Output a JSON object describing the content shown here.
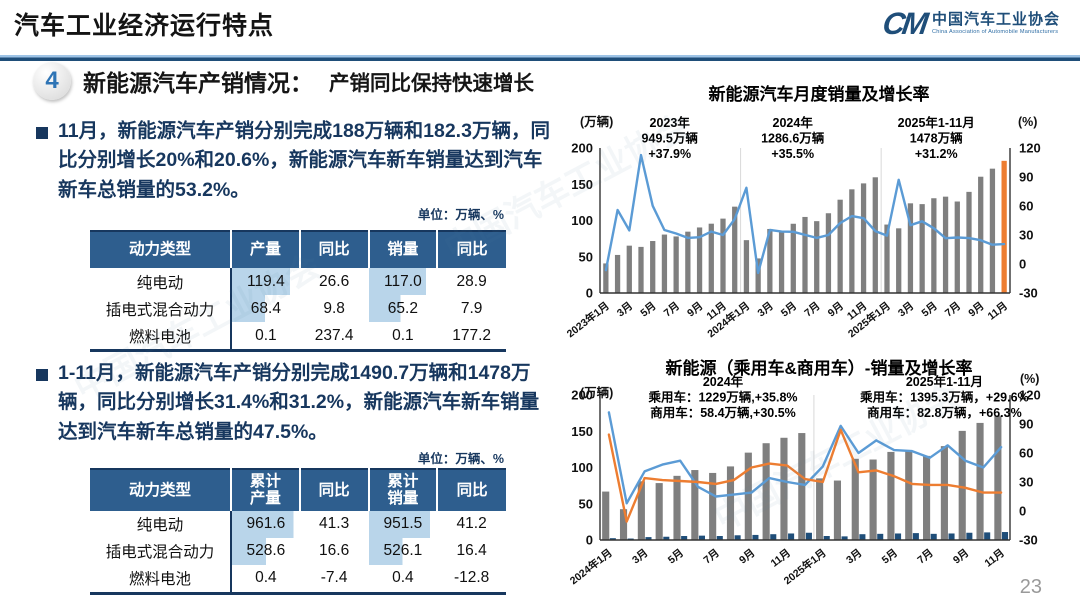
{
  "header": {
    "title": "汽车工业经济运行特点",
    "logo": {
      "mark": "CM",
      "name_cn": "中国汽车工业协会",
      "name_en": "China Association of Automobile Manufacturers"
    }
  },
  "section": {
    "badge": "4",
    "title": "新能源汽车产销情况：",
    "subtitle": "产销同比保持快速增长"
  },
  "watermark": "中国汽车工业协会",
  "page_number": "23",
  "left": {
    "bullet1": "11月，新能源汽车产销分别完成188万辆和182.3万辆，同比分别增长20%和20.6%，新能源汽车新车销量达到汽车新车总销量的53.2%。",
    "unit_note1": "单位：万辆、%",
    "table1": {
      "headers": [
        "动力类型",
        "产量",
        "同比",
        "销量",
        "同比"
      ],
      "rows": [
        [
          "纯电动",
          "119.4",
          "26.6",
          "117.0",
          "28.9"
        ],
        [
          "插电式混合动力",
          "68.4",
          "9.8",
          "65.2",
          "7.9"
        ],
        [
          "燃料电池",
          "0.1",
          "237.4",
          "0.1",
          "177.2"
        ]
      ],
      "bar_cols": [
        1,
        3
      ],
      "bar_max": 140
    },
    "bullet2": "1-11月，新能源汽车产销分别完成1490.7万辆和1478万辆，同比分别增长31.4%和31.2%，新能源汽车新车销量达到汽车新车总销量的47.5%。",
    "unit_note2": "单位：万辆、%",
    "table2": {
      "headers": [
        "动力类型",
        "累计\n产量",
        "同比",
        "累计\n销量",
        "同比"
      ],
      "rows": [
        [
          "纯电动",
          "961.6",
          "41.3",
          "951.5",
          "41.2"
        ],
        [
          "插电式混合动力",
          "528.6",
          "16.6",
          "526.1",
          "16.4"
        ],
        [
          "燃料电池",
          "0.4",
          "-7.4",
          "0.4",
          "-12.8"
        ]
      ],
      "bar_cols": [
        1,
        3
      ],
      "bar_max": 1060
    }
  },
  "chart_data": [
    {
      "type": "bar",
      "title": "新能源汽车月度销量及增长率",
      "unit_left": "(万辆)",
      "unit_right": "(%)",
      "ylim_left": [
        0,
        200
      ],
      "ylim_right": [
        -30,
        120
      ],
      "left_ticks": [
        0,
        50,
        100,
        150,
        200
      ],
      "right_ticks": [
        -30,
        0,
        30,
        60,
        90,
        120
      ],
      "grid": false,
      "legend": "none",
      "tick_every": 2,
      "tick_labels": [
        "2023年1月",
        "3月",
        "5月",
        "7月",
        "9月",
        "11月",
        "2024年1月",
        "3月",
        "5月",
        "7月",
        "9月",
        "11月",
        "2025年1月",
        "3月",
        "5月",
        "7月",
        "9月",
        "11月"
      ],
      "categories": [
        "2023年1月",
        "2023年2月",
        "2023年3月",
        "2023年4月",
        "2023年5月",
        "2023年6月",
        "2023年7月",
        "2023年8月",
        "2023年9月",
        "2023年10月",
        "2023年11月",
        "2023年12月",
        "2024年1月",
        "2024年2月",
        "2024年3月",
        "2024年4月",
        "2024年5月",
        "2024年6月",
        "2024年7月",
        "2024年8月",
        "2024年9月",
        "2024年10月",
        "2024年11月",
        "2024年12月",
        "2025年1月",
        "2025年2月",
        "2025年3月",
        "2025年4月",
        "2025年5月",
        "2025年6月",
        "2025年7月",
        "2025年8月",
        "2025年9月",
        "2025年10月",
        "2025年11月"
      ],
      "separators": [
        12,
        24
      ],
      "series": [
        {
          "name": "月度销量",
          "type": "bar",
          "axis": "left",
          "color": "#7F7F7F",
          "last_color": "#ED7D31",
          "values": [
            40.8,
            52.5,
            65.3,
            63.6,
            71.7,
            80.6,
            78.0,
            84.6,
            90.4,
            95.6,
            102.6,
            119.1,
            72.9,
            47.7,
            88.3,
            85.0,
            95.5,
            104.9,
            99.1,
            110.0,
            128.7,
            143.0,
            151.2,
            159.6,
            94.4,
            89.2,
            123.7,
            122.6,
            130.7,
            132.9,
            126.2,
            139.5,
            160.4,
            171.5,
            182.3
          ]
        },
        {
          "name": "增长率",
          "type": "line",
          "axis": "right",
          "color": "#5B9BD5",
          "values": [
            -6.3,
            55.9,
            34.8,
            112.7,
            60.2,
            35.2,
            31.6,
            27.0,
            27.7,
            33.5,
            30.0,
            46.4,
            78.8,
            -9.2,
            35.3,
            33.5,
            33.3,
            30.1,
            27.0,
            30.0,
            42.3,
            49.6,
            47.4,
            34.0,
            29.4,
            87.1,
            40.1,
            44.2,
            36.9,
            26.7,
            27.4,
            26.8,
            24.6,
            20.0,
            20.6
          ]
        }
      ],
      "annotations": [
        {
          "x_frac": 0.17,
          "lines": [
            "2023年",
            "949.5万辆",
            "+37.9%"
          ]
        },
        {
          "x_frac": 0.47,
          "lines": [
            "2024年",
            "1286.6万辆",
            "+35.5%"
          ]
        },
        {
          "x_frac": 0.82,
          "lines": [
            "2025年1-11月",
            "1478万辆",
            "+31.2%"
          ]
        }
      ]
    },
    {
      "type": "bar",
      "title": "新能源（乘用车&商用车）-销量及增长率",
      "unit_left": "(万辆)",
      "unit_right": "(%)",
      "ylim_left": [
        0,
        200
      ],
      "ylim_right": [
        -30,
        120
      ],
      "left_ticks": [
        0,
        50,
        100,
        150,
        200
      ],
      "right_ticks": [
        -30,
        0,
        30,
        60,
        90,
        120
      ],
      "grid": false,
      "legend": "none",
      "tick_every": 2,
      "tick_labels": [
        "2024年1月",
        "3月",
        "5月",
        "7月",
        "9月",
        "11月",
        "2025年1月",
        "3月",
        "5月",
        "7月",
        "9月",
        "11月"
      ],
      "categories": [
        "2024年1月",
        "2024年2月",
        "2024年3月",
        "2024年4月",
        "2024年5月",
        "2024年6月",
        "2024年7月",
        "2024年8月",
        "2024年9月",
        "2024年10月",
        "2024年11月",
        "2024年12月",
        "2025年1月",
        "2025年2月",
        "2025年3月",
        "2025年4月",
        "2025年5月",
        "2025年6月",
        "2025年7月",
        "2025年8月",
        "2025年9月",
        "2025年10月",
        "2025年11月"
      ],
      "separators": [
        12
      ],
      "series": [
        {
          "name": "乘用车销量",
          "type": "bar",
          "axis": "left",
          "color": "#7F7F7F",
          "values": [
            66.8,
            42.5,
            81.0,
            78.5,
            88.5,
            96.5,
            92.5,
            101.5,
            120.5,
            133.5,
            141.0,
            147.5,
            85.0,
            82.0,
            112.0,
            111.0,
            121.5,
            122.5,
            116.0,
            129.5,
            150.5,
            161.5,
            171.5
          ]
        },
        {
          "name": "商用车销量",
          "type": "bar",
          "axis": "left",
          "color": "#1F4E79",
          "values": [
            2.5,
            2.0,
            4.0,
            4.5,
            5.5,
            6.0,
            5.5,
            6.5,
            7.0,
            8.0,
            9.0,
            10.0,
            5.5,
            5.0,
            8.0,
            8.5,
            9.0,
            9.5,
            8.5,
            9.0,
            10.0,
            10.5,
            11.0
          ]
        },
        {
          "name": "商用车增速",
          "type": "line",
          "axis": "right",
          "color": "#5B9BD5",
          "values": [
            102,
            8,
            41,
            48,
            52,
            25,
            15,
            17,
            19,
            34,
            30,
            27,
            46,
            88,
            60,
            73,
            63,
            62,
            55,
            68,
            52,
            45,
            66
          ]
        },
        {
          "name": "乘用车增速",
          "type": "line",
          "axis": "right",
          "color": "#ED7D31",
          "values": [
            79,
            -11,
            34,
            32,
            31,
            30,
            28,
            32,
            45,
            49,
            47,
            33,
            30,
            84,
            40,
            42,
            36,
            28,
            27,
            27,
            24,
            19,
            19
          ]
        }
      ],
      "annotations": [
        {
          "x_frac": 0.3,
          "lines": [
            "2024年",
            "乘用车：1229万辆,+35.8%",
            "商用车：58.4万辆,+30.5%"
          ]
        },
        {
          "x_frac": 0.84,
          "lines": [
            "2025年1-11月",
            "乘用车：1395.3万辆，+29.6%",
            "商用车：82.8万辆，+66.3%"
          ]
        }
      ]
    }
  ]
}
